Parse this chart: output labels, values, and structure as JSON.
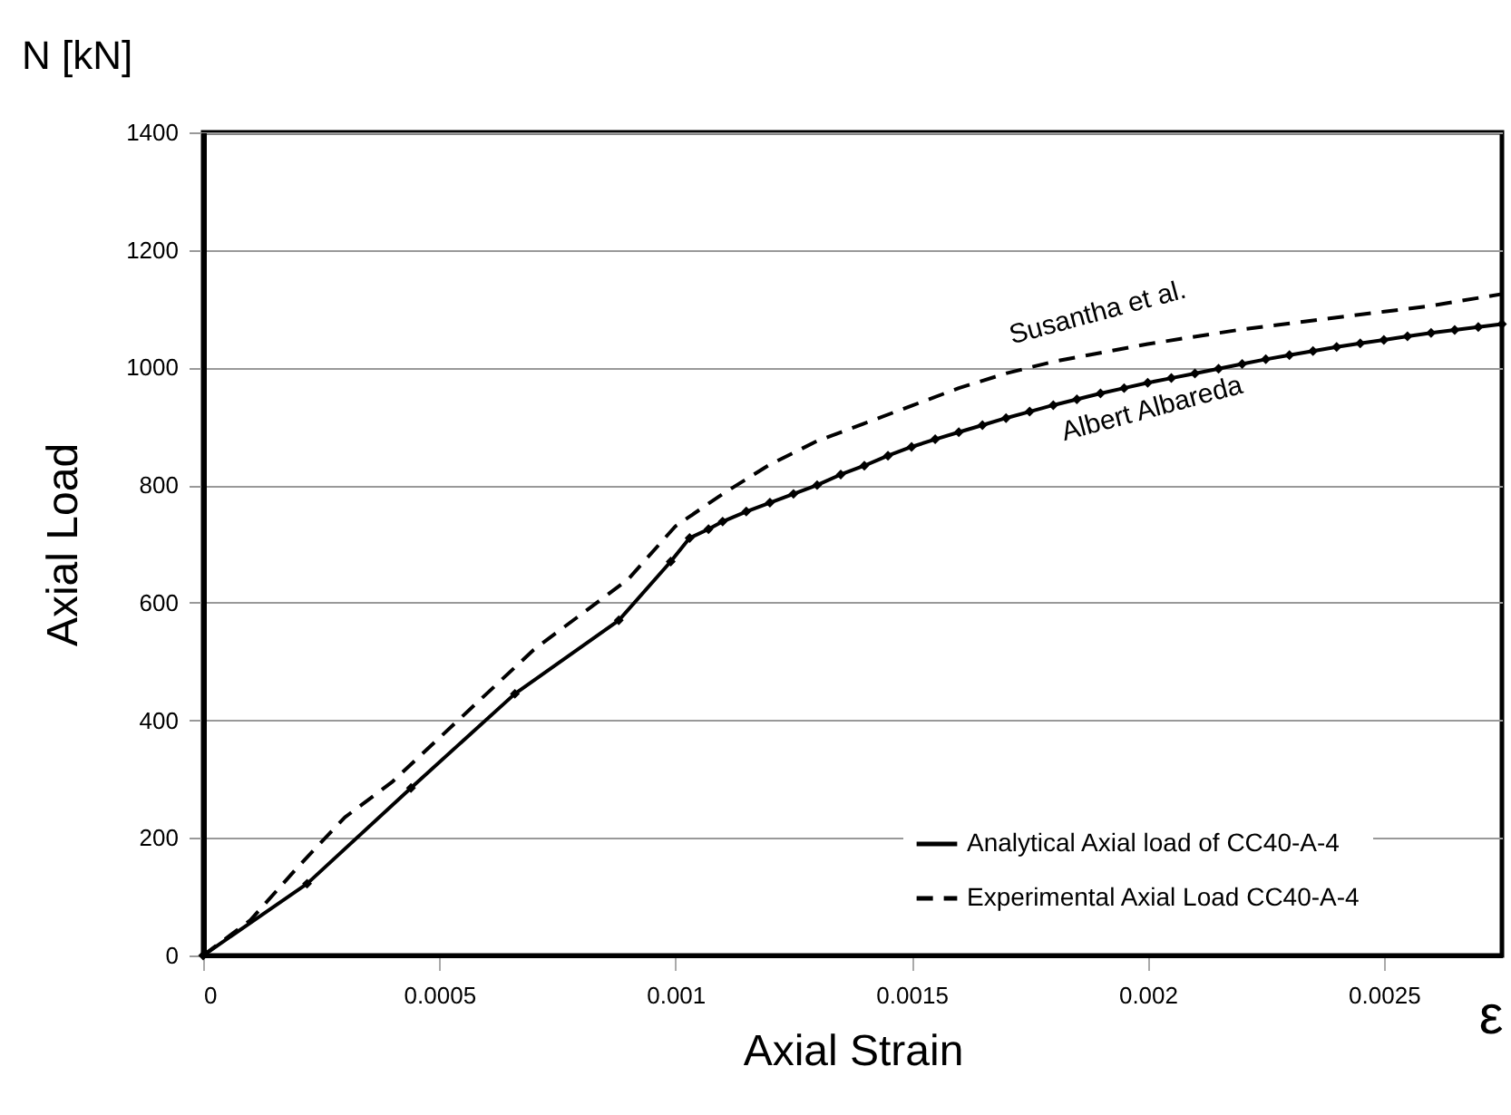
{
  "chart_data": {
    "type": "line",
    "xlabel": "Axial Strain",
    "ylabel": "Axial Load",
    "annotations": [
      "N [kN]",
      "ε",
      "Susantha et al.",
      "Albert Albareda"
    ],
    "xlim": [
      0,
      0.00275
    ],
    "xticks": [
      0,
      0.0005,
      0.001,
      0.0015,
      0.002,
      0.0025
    ],
    "ylim": [
      0,
      1400
    ],
    "yticks": [
      0,
      200,
      400,
      600,
      800,
      1000,
      1200,
      1400
    ],
    "grid": "y",
    "legend": "bottom right",
    "series": [
      {
        "name": "Analytical Axial load of CC40-A-4",
        "color": "#000000",
        "marker": "diamond",
        "line_style": "solid",
        "x": [
          0,
          0.00022,
          0.00044,
          0.00066,
          0.00088,
          0.00099,
          0.00103,
          0.00107,
          0.0011,
          0.00115,
          0.0012,
          0.00125,
          0.0013,
          0.00135,
          0.0014,
          0.00145,
          0.0015,
          0.00155,
          0.0016,
          0.00165,
          0.0017,
          0.00175,
          0.0018,
          0.00185,
          0.0019,
          0.00195,
          0.002,
          0.00205,
          0.0021,
          0.00215,
          0.0022,
          0.00225,
          0.0023,
          0.00235,
          0.0024,
          0.00245,
          0.0025,
          0.00255,
          0.0026,
          0.00265,
          0.0027,
          0.00275
        ],
        "values": [
          0,
          122,
          285,
          445,
          570,
          670,
          710,
          725,
          738,
          755,
          770,
          785,
          800,
          818,
          833,
          850,
          865,
          878,
          890,
          902,
          914,
          925,
          936,
          946,
          956,
          965,
          974,
          982,
          990,
          998,
          1006,
          1014,
          1021,
          1028,
          1035,
          1041,
          1047,
          1053,
          1059,
          1064,
          1069,
          1074
        ]
      },
      {
        "name": "Experimental Axial Load CC40-A-4",
        "color": "#000000",
        "marker": "none",
        "line_style": "dashed",
        "x": [
          0,
          0.0001,
          0.0002,
          0.0003,
          0.0004,
          0.0005,
          0.0006,
          0.0007,
          0.0008,
          0.0009,
          0.001,
          0.0011,
          0.0012,
          0.0013,
          0.0014,
          0.0015,
          0.0016,
          0.0017,
          0.0018,
          0.002,
          0.0022,
          0.0024,
          0.0026,
          0.00275
        ],
        "values": [
          0,
          60,
          150,
          235,
          295,
          370,
          445,
          520,
          580,
          640,
          730,
          785,
          835,
          875,
          905,
          935,
          965,
          990,
          1010,
          1040,
          1065,
          1085,
          1105,
          1125
        ]
      }
    ]
  }
}
